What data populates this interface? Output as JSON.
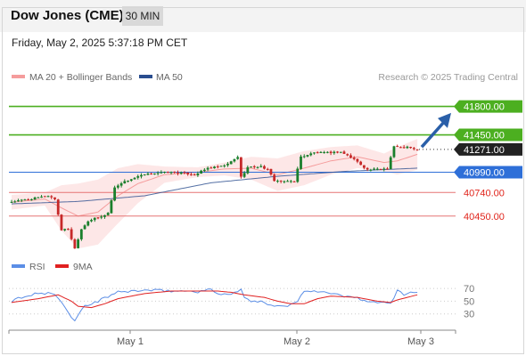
{
  "header": {
    "title": "Dow Jones (CME)",
    "timeframe": "30 MIN",
    "datetime": "Friday, May 2, 2025 5:37:18 PM CET"
  },
  "legend": {
    "bollinger": "MA 20 + Bollinger Bands",
    "ma50": "MA 50",
    "copyright": "Research © 2025 Trading Central",
    "rsi": "RSI",
    "rsi_ma": "9MA"
  },
  "colors": {
    "bollinger": "#f59c9c",
    "ma50": "#2a4d8f",
    "bull": "#1a7f2c",
    "bear": "#c62828",
    "target": "#4caf20",
    "support": "#e57373",
    "pivot": "#2e6fd8",
    "current": "#222222",
    "rsi": "#5b8ee6",
    "rsi_ma": "#e02020",
    "arrow": "#2a5fa8"
  },
  "chart_data": [
    {
      "type": "candlestick",
      "title": "Dow Jones (CME)",
      "timeframe": "30 MIN",
      "x_ticks": [
        "May 1",
        "May 2",
        "May 3"
      ],
      "ylim": [
        40020,
        41960
      ],
      "levels": [
        {
          "label": "41800.00",
          "value": 41800,
          "kind": "target"
        },
        {
          "label": "41450.00",
          "value": 41450,
          "kind": "target"
        },
        {
          "label": "41271.00",
          "value": 41271,
          "kind": "current"
        },
        {
          "label": "40990.00",
          "value": 40990,
          "kind": "pivot"
        },
        {
          "label": "40740.00",
          "value": 40740,
          "kind": "support"
        },
        {
          "label": "40450.00",
          "value": 40450,
          "kind": "support"
        }
      ],
      "anchors": [
        [
          0,
          40620
        ],
        [
          8,
          40670
        ],
        [
          12,
          40700
        ],
        [
          14,
          40660
        ],
        [
          16,
          40280
        ],
        [
          18,
          40290
        ],
        [
          20,
          40050
        ],
        [
          22,
          40290
        ],
        [
          24,
          40390
        ],
        [
          26,
          40420
        ],
        [
          28,
          40440
        ],
        [
          30,
          40490
        ],
        [
          32,
          40800
        ],
        [
          34,
          40860
        ],
        [
          36,
          40890
        ],
        [
          38,
          40920
        ],
        [
          40,
          40950
        ],
        [
          44,
          40980
        ],
        [
          48,
          40990
        ],
        [
          52,
          40980
        ],
        [
          56,
          40960
        ],
        [
          60,
          41040
        ],
        [
          64,
          41060
        ],
        [
          66,
          41090
        ],
        [
          69,
          41180
        ],
        [
          70,
          40930
        ],
        [
          72,
          41050
        ],
        [
          76,
          41060
        ],
        [
          78,
          41020
        ],
        [
          80,
          40890
        ],
        [
          83,
          40870
        ],
        [
          84,
          40880
        ],
        [
          86,
          40880
        ],
        [
          88,
          41180
        ],
        [
          92,
          41230
        ],
        [
          96,
          41230
        ],
        [
          100,
          41240
        ],
        [
          104,
          41150
        ],
        [
          108,
          41020
        ],
        [
          112,
          41030
        ],
        [
          114,
          41040
        ],
        [
          116,
          41310
        ],
        [
          118,
          41290
        ],
        [
          120,
          41300
        ],
        [
          122,
          41271
        ]
      ],
      "ma50": [
        [
          0,
          40600
        ],
        [
          20,
          40630
        ],
        [
          40,
          40700
        ],
        [
          60,
          40860
        ],
        [
          80,
          40940
        ],
        [
          100,
          41000
        ],
        [
          122,
          41040
        ]
      ],
      "bollinger_mid": [
        [
          0,
          40620
        ],
        [
          10,
          40660
        ],
        [
          15,
          40550
        ],
        [
          20,
          40450
        ],
        [
          26,
          40500
        ],
        [
          32,
          40700
        ],
        [
          38,
          40850
        ],
        [
          46,
          40960
        ],
        [
          56,
          40990
        ],
        [
          64,
          41030
        ],
        [
          72,
          41040
        ],
        [
          80,
          40960
        ],
        [
          88,
          41040
        ],
        [
          96,
          41130
        ],
        [
          104,
          41180
        ],
        [
          112,
          41110
        ],
        [
          116,
          41130
        ],
        [
          122,
          41210
        ]
      ],
      "bollinger_width": [
        [
          0,
          90
        ],
        [
          10,
          80
        ],
        [
          15,
          280
        ],
        [
          20,
          400
        ],
        [
          26,
          400
        ],
        [
          32,
          340
        ],
        [
          38,
          240
        ],
        [
          46,
          100
        ],
        [
          56,
          60
        ],
        [
          64,
          80
        ],
        [
          72,
          140
        ],
        [
          80,
          200
        ],
        [
          88,
          210
        ],
        [
          96,
          170
        ],
        [
          104,
          140
        ],
        [
          112,
          110
        ],
        [
          116,
          170
        ],
        [
          122,
          190
        ]
      ]
    },
    {
      "type": "line",
      "title": "RSI",
      "yticks": [
        70,
        50,
        30
      ],
      "ylim": [
        10,
        80
      ],
      "rsi": [
        [
          0,
          50
        ],
        [
          4,
          58
        ],
        [
          8,
          62
        ],
        [
          12,
          62
        ],
        [
          14,
          55
        ],
        [
          16,
          40
        ],
        [
          18,
          25
        ],
        [
          19,
          18
        ],
        [
          20,
          30
        ],
        [
          22,
          42
        ],
        [
          24,
          46
        ],
        [
          26,
          50
        ],
        [
          28,
          55
        ],
        [
          30,
          60
        ],
        [
          32,
          64
        ],
        [
          36,
          66
        ],
        [
          40,
          67
        ],
        [
          44,
          67
        ],
        [
          48,
          66
        ],
        [
          52,
          66
        ],
        [
          56,
          65
        ],
        [
          58,
          67
        ],
        [
          60,
          68
        ],
        [
          62,
          62
        ],
        [
          64,
          62
        ],
        [
          66,
          60
        ],
        [
          68,
          66
        ],
        [
          69,
          68
        ],
        [
          70,
          55
        ],
        [
          72,
          50
        ],
        [
          76,
          48
        ],
        [
          78,
          44
        ],
        [
          80,
          44
        ],
        [
          83,
          42
        ],
        [
          86,
          50
        ],
        [
          88,
          67
        ],
        [
          92,
          66
        ],
        [
          96,
          62
        ],
        [
          100,
          58
        ],
        [
          104,
          55
        ],
        [
          106,
          52
        ],
        [
          108,
          48
        ],
        [
          112,
          47
        ],
        [
          114,
          46
        ],
        [
          116,
          68
        ],
        [
          118,
          60
        ],
        [
          120,
          66
        ],
        [
          122,
          62
        ]
      ],
      "ma9": [
        [
          0,
          48
        ],
        [
          8,
          54
        ],
        [
          14,
          60
        ],
        [
          18,
          50
        ],
        [
          20,
          42
        ],
        [
          24,
          40
        ],
        [
          28,
          46
        ],
        [
          32,
          54
        ],
        [
          40,
          62
        ],
        [
          48,
          66
        ],
        [
          56,
          66
        ],
        [
          62,
          66
        ],
        [
          66,
          64
        ],
        [
          70,
          60
        ],
        [
          76,
          56
        ],
        [
          80,
          50
        ],
        [
          84,
          46
        ],
        [
          88,
          46
        ],
        [
          92,
          54
        ],
        [
          96,
          58
        ],
        [
          104,
          56
        ],
        [
          110,
          50
        ],
        [
          114,
          48
        ],
        [
          116,
          52
        ],
        [
          122,
          60
        ]
      ]
    }
  ]
}
